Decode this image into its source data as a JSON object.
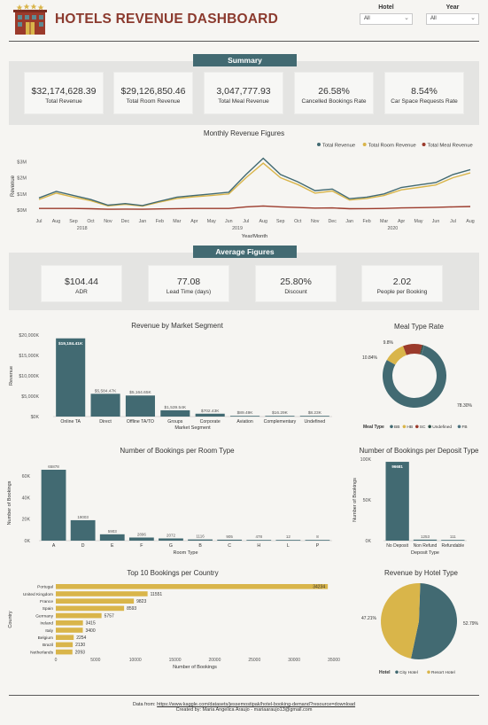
{
  "header": {
    "title": "HOTELS REVENUE DASHBOARD",
    "hotel_filter": {
      "label": "Hotel",
      "value": "All"
    },
    "year_filter": {
      "label": "Year",
      "value": "All"
    }
  },
  "summary": {
    "section_label": "Summary",
    "kpis": [
      {
        "value": "$32,174,628.39",
        "label": "Total Revenue"
      },
      {
        "value": "$29,126,850.46",
        "label": "Total Room Revenue"
      },
      {
        "value": "3,047,777.93",
        "label": "Total Meal Revenue"
      },
      {
        "value": "26.58%",
        "label": "Cancelled Bookings Rate"
      },
      {
        "value": "8.54%",
        "label": "Car Space Requests Rate"
      }
    ]
  },
  "average": {
    "section_label": "Average Figures",
    "kpis": [
      {
        "value": "$104.44",
        "label": "ADR"
      },
      {
        "value": "77.08",
        "label": "Lead Time (days)"
      },
      {
        "value": "25.80%",
        "label": "Discount"
      },
      {
        "value": "2.02",
        "label": "People per Booking"
      }
    ]
  },
  "colors": {
    "teal": "#426a72",
    "gold": "#d9b54a",
    "brown": "#9b3a2b",
    "title_red": "#8b3a2e",
    "band": "#e4e4e2"
  },
  "chart_data": [
    {
      "id": "monthly",
      "type": "line",
      "title": "Monthly Revenue Figures",
      "xlabel": "Year/Month",
      "ylabel": "Revenue",
      "tick_labels": [
        "Jul",
        "Aug",
        "Sep",
        "Oct",
        "Nov",
        "Dec",
        "Jan",
        "Feb",
        "Mar",
        "Apr",
        "May",
        "Jun",
        "Jul",
        "Aug",
        "Sep",
        "Oct",
        "Nov",
        "Dec",
        "Jan",
        "Feb",
        "Mar",
        "Apr",
        "May",
        "Jun",
        "Jul",
        "Aug"
      ],
      "year_labels": [
        {
          "label": "2018",
          "index": 2.5
        },
        {
          "label": "2019",
          "index": 11.5
        },
        {
          "label": "2020",
          "index": 20.5
        }
      ],
      "yticks": [
        {
          "v": 0,
          "label": "$0M"
        },
        {
          "v": 1,
          "label": "$1M"
        },
        {
          "v": 2,
          "label": "$2M"
        },
        {
          "v": 3,
          "label": "$3M"
        }
      ],
      "ylim": [
        0,
        3.4
      ],
      "series": [
        {
          "name": "Total Revenue",
          "color": "#426a72",
          "values": [
            0.75,
            1.15,
            0.9,
            0.65,
            0.3,
            0.4,
            0.28,
            0.55,
            0.8,
            0.9,
            1.0,
            1.1,
            2.2,
            3.2,
            2.2,
            1.75,
            1.2,
            1.3,
            0.7,
            0.8,
            1.0,
            1.4,
            1.55,
            1.7,
            2.2,
            2.5
          ]
        },
        {
          "name": "Total Room Revenue",
          "color": "#d9b54a",
          "values": [
            0.65,
            1.05,
            0.8,
            0.58,
            0.26,
            0.35,
            0.24,
            0.5,
            0.72,
            0.82,
            0.9,
            1.0,
            2.0,
            2.9,
            2.0,
            1.58,
            1.05,
            1.18,
            0.62,
            0.72,
            0.9,
            1.25,
            1.4,
            1.55,
            2.0,
            2.3
          ]
        },
        {
          "name": "Total Meal Revenue",
          "color": "#9b3a2b",
          "values": [
            0.1,
            0.1,
            0.1,
            0.08,
            0.05,
            0.06,
            0.05,
            0.07,
            0.09,
            0.1,
            0.1,
            0.1,
            0.2,
            0.25,
            0.2,
            0.16,
            0.12,
            0.13,
            0.08,
            0.09,
            0.1,
            0.13,
            0.15,
            0.17,
            0.2,
            0.22
          ]
        }
      ]
    },
    {
      "id": "market",
      "type": "bar",
      "title": "Revenue by Market Segment",
      "xlabel": "Market Segment",
      "ylabel": "Revenue",
      "categories": [
        "Online TA",
        "Direct",
        "Offline TA/TO",
        "Groups",
        "Corporate",
        "Aviation",
        "Complementary",
        "Undefined"
      ],
      "values": [
        19184.41,
        5584.47,
        5164.65,
        1539.54,
        702.43,
        89.49,
        16.29,
        8.23
      ],
      "value_labels": [
        "$19,184.41K",
        "$5,584.47K",
        "$5,164.65K",
        "$1,539.54K",
        "$702.43K",
        "$89.49K",
        "$16.29K",
        "$8.23K"
      ],
      "yticks": [
        {
          "v": 0,
          "label": "$0K"
        },
        {
          "v": 5000,
          "label": "$5,000K"
        },
        {
          "v": 10000,
          "label": "$10,000K"
        },
        {
          "v": 15000,
          "label": "$15,000K"
        },
        {
          "v": 20000,
          "label": "$20,000K"
        }
      ],
      "ylim": [
        0,
        20000
      ]
    },
    {
      "id": "meal",
      "type": "pie",
      "title": "Meal Type Rate",
      "legend_title": "Meal Type",
      "slices": [
        {
          "name": "BB",
          "value": 78.3,
          "color": "#426a72",
          "label": "78.30%"
        },
        {
          "name": "HB",
          "value": 10.84,
          "color": "#d9b54a",
          "label": "10.84%"
        },
        {
          "name": "SC",
          "value": 9.8,
          "color": "#9b3a2b",
          "label": "9.8%"
        },
        {
          "name": "Undefined",
          "value": 0.8,
          "color": "#2f5148",
          "label": ""
        },
        {
          "name": "FB",
          "value": 0.26,
          "color": "#4d7480",
          "label": ""
        }
      ]
    },
    {
      "id": "room",
      "type": "bar",
      "title": "Number of Bookings per Room Type",
      "xlabel": "Room Type",
      "ylabel": "Number of Bookings",
      "categories": [
        "A",
        "D",
        "E",
        "F",
        "G",
        "B",
        "C",
        "H",
        "L",
        "P"
      ],
      "values": [
        65878,
        19003,
        5903,
        2896,
        2072,
        1116,
        905,
        478,
        12,
        8
      ],
      "value_labels": [
        "65878",
        "19003",
        "5903",
        "2896",
        "2072",
        "1116",
        "905",
        "478",
        "12",
        "8"
      ],
      "yticks": [
        {
          "v": 0,
          "label": "0K"
        },
        {
          "v": 20000,
          "label": "20K"
        },
        {
          "v": 40000,
          "label": "40K"
        },
        {
          "v": 60000,
          "label": "60K"
        }
      ],
      "ylim": [
        0,
        70000
      ]
    },
    {
      "id": "deposit",
      "type": "bar",
      "title": "Number of Bookings per Deposit Type",
      "xlabel": "Deposit Type",
      "ylabel": "Number of Bookings",
      "categories": [
        "No Deposit",
        "Non Refund",
        "Refundable"
      ],
      "values": [
        96681,
        1253,
        111
      ],
      "value_labels": [
        "96681",
        "1253",
        "111"
      ],
      "yticks": [
        {
          "v": 0,
          "label": "0K"
        },
        {
          "v": 50000,
          "label": "50K"
        },
        {
          "v": 100000,
          "label": "100K"
        }
      ],
      "ylim": [
        0,
        100000
      ]
    },
    {
      "id": "country",
      "type": "bar",
      "title": "Top 10 Bookings per Country",
      "xlabel": "Number of Bookings",
      "ylabel": "Country",
      "categories": [
        "Portugal",
        "United Kingdom",
        "France",
        "Spain",
        "Germany",
        "Ireland",
        "Italy",
        "Belgium",
        "Brazil",
        "Netherlands"
      ],
      "values": [
        34234,
        11551,
        9823,
        8593,
        5757,
        3415,
        3400,
        2254,
        2130,
        2093
      ],
      "xticks": [
        0,
        5000,
        10000,
        15000,
        20000,
        25000,
        30000,
        35000
      ],
      "xlim": [
        0,
        35000
      ]
    },
    {
      "id": "hoteltype",
      "type": "pie",
      "title": "Revenue by Hotel Type",
      "legend_title": "Hotel",
      "slices": [
        {
          "name": "City Hotel",
          "value": 52.79,
          "color": "#426a72",
          "label": "52.79%"
        },
        {
          "name": "Resort Hotel",
          "value": 47.21,
          "color": "#d9b54a",
          "label": "47.21%"
        }
      ]
    }
  ],
  "footer": {
    "data_from": "Data from:",
    "link": "https://www.kaggle.com/datasets/jessemostipak/hotel-booking-demand?resource=download",
    "created_by": "Created by: Maria Angelica Araujo - mariaaraujo13@gmail.com"
  }
}
